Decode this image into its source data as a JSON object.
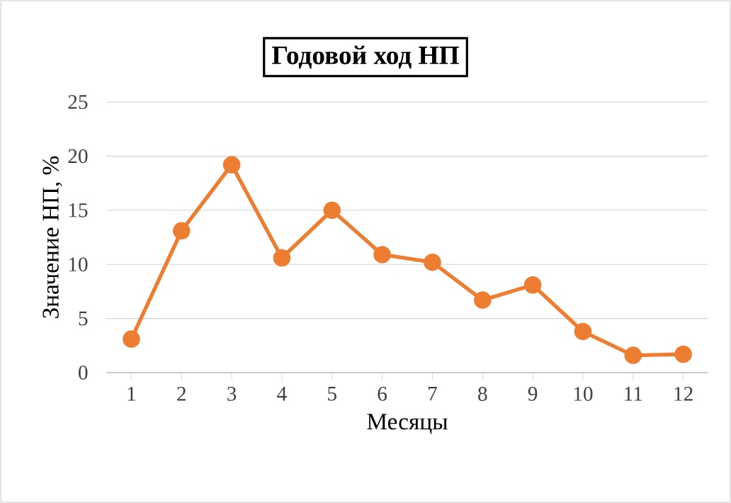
{
  "chart_data": {
    "type": "line",
    "title": "Годовой ход НП",
    "xlabel": "Месяцы",
    "ylabel": "Значение НП, %",
    "categories": [
      "1",
      "2",
      "3",
      "4",
      "5",
      "6",
      "7",
      "8",
      "9",
      "10",
      "11",
      "12"
    ],
    "series": [
      {
        "color": "#ed7d31",
        "values": [
          3.1,
          13.1,
          19.2,
          10.6,
          15.0,
          10.9,
          10.2,
          6.7,
          8.1,
          3.8,
          1.6,
          1.7
        ]
      }
    ],
    "ylim": [
      0,
      25
    ],
    "yticks": [
      0,
      5,
      10,
      15,
      20,
      25
    ],
    "grid": "y",
    "marker": "circle",
    "line_style": "solid"
  }
}
